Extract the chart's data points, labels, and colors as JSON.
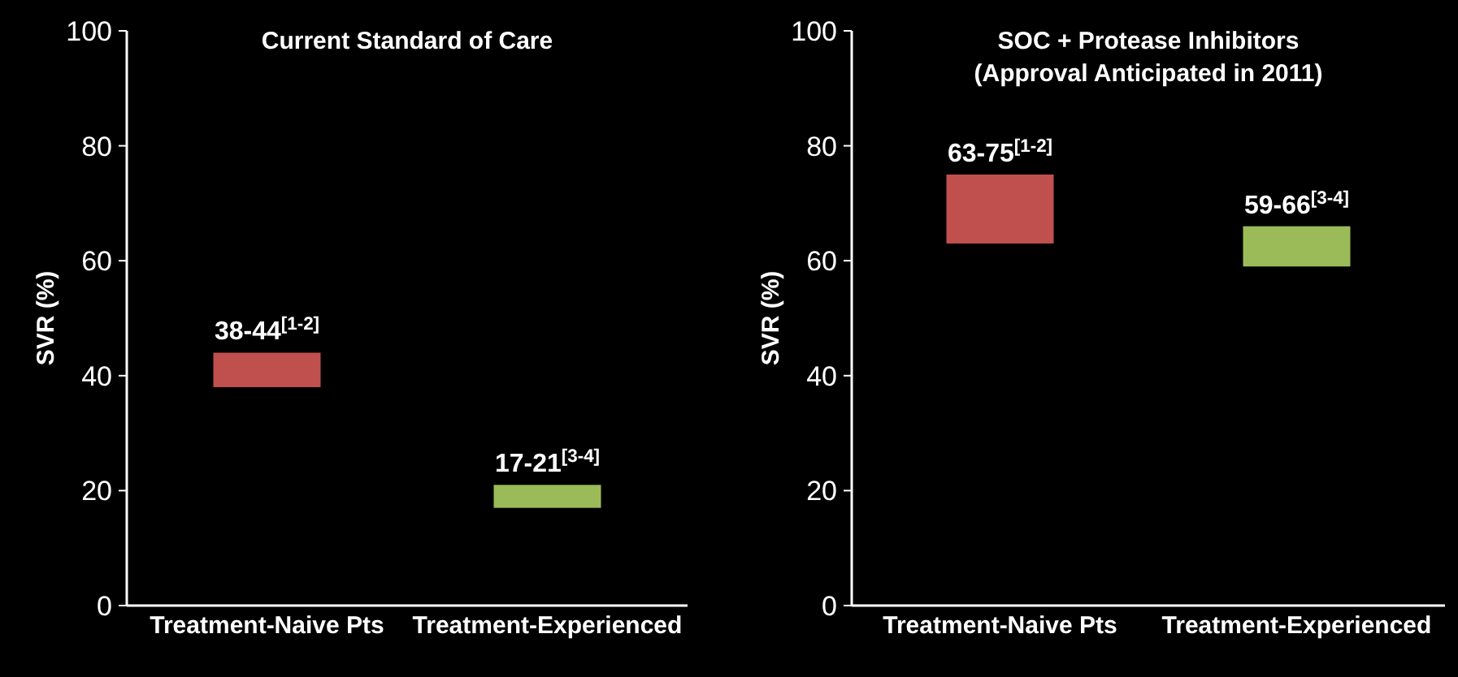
{
  "chart_data": [
    {
      "type": "bar",
      "title": "Current Standard of Care",
      "ylabel": "SVR (%)",
      "categories": [
        "Treatment-Naive Pts",
        "Treatment-Experienced"
      ],
      "base": [
        38,
        17
      ],
      "values": [
        6,
        4
      ],
      "colors": [
        "#c0504d",
        "#9bbb59"
      ],
      "value_labels": [
        "38-44$^{[1-2]}$",
        "17-21$^{[3-4]}$"
      ],
      "ylim": [
        0,
        100
      ],
      "yticks": [
        0,
        20,
        40,
        60,
        80,
        100
      ]
    },
    {
      "type": "bar",
      "title": "SOC + Protease Inhibitors\n(Approval Anticipated in 2011)",
      "ylabel": "SVR (%)",
      "categories": [
        "Treatment-Naive Pts",
        "Treatment-Experienced"
      ],
      "base": [
        63,
        59
      ],
      "values": [
        12,
        7
      ],
      "colors": [
        "#c0504d",
        "#9bbb59"
      ],
      "value_labels": [
        "63-75$^{[1-2]}$",
        "59-66$^{[3-4]}$"
      ],
      "ylim": [
        0,
        100
      ],
      "yticks": [
        0,
        20,
        40,
        60,
        80,
        100
      ]
    }
  ]
}
